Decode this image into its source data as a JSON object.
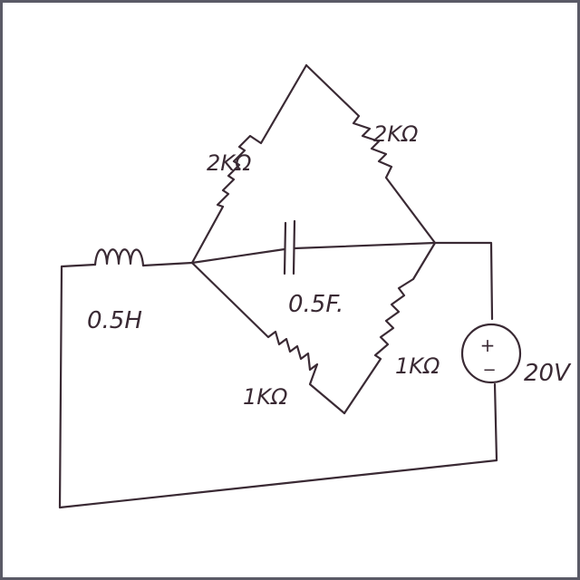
{
  "components": {
    "inductor": {
      "label": "0.5H"
    },
    "capacitor": {
      "label": "0.5F."
    },
    "resistor_top_left": {
      "label": "2KΩ"
    },
    "resistor_top_right": {
      "label": "2KΩ"
    },
    "resistor_bottom_left": {
      "label": "1KΩ"
    },
    "resistor_bottom_right": {
      "label": "1KΩ"
    },
    "voltage_source": {
      "label": "20V",
      "plus": "+",
      "minus": "−"
    }
  },
  "colors": {
    "ink": "#3a2a34",
    "background": "#ffffff",
    "frame": "#5a5a66"
  }
}
